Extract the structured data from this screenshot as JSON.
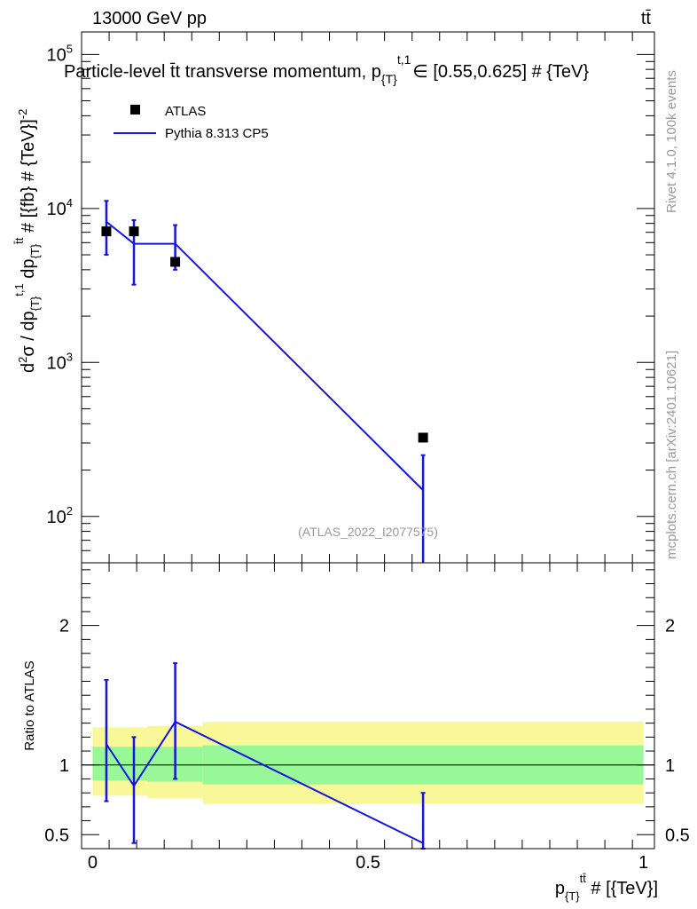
{
  "header": {
    "left": "13000 GeV pp",
    "right": "tt̄"
  },
  "chart_data": {
    "type": "line",
    "title": "Particle-level t̄t transverse momentum, p",
    "title_sub": "{T}",
    "title_sup": "t,1",
    "title_rest": "∈ [0.55,0.625] # {TeV}",
    "analysis_label": "(ATLAS_2022_I2077575)",
    "side_text_top": "Rivet 4.1.0,  100k events",
    "side_text_bottom": "mcplots.cern.ch [arXiv:2401.10621]",
    "legend": {
      "data_label": "ATLAS",
      "mc_label": "Pythia 8.313 CP5"
    },
    "main": {
      "ylabel": "d²σ / dp{T}t,1 dp{T}tt̄ # [{fb} # {TeV}⁻²]",
      "ylabel_parts": {
        "a": "d",
        "a_sup": "2",
        "b": "σ / dp",
        "b_sub": "{T}",
        "b_sup": "t,1",
        "c": " dp",
        "c_sub": "{T}",
        "c_sup": "t̄t",
        "d": " # [{fb} # {TeV}]",
        "d_sup": "-2"
      },
      "yscale": "log",
      "ylim": [
        50,
        140000
      ],
      "yticks": [
        {
          "value": 100,
          "base": "10",
          "exp": "2"
        },
        {
          "value": 1000,
          "base": "10",
          "exp": "3"
        },
        {
          "value": 10000,
          "base": "10",
          "exp": "4"
        },
        {
          "value": 100000,
          "base": "10",
          "exp": "5"
        }
      ],
      "data": {
        "name": "ATLAS",
        "x": [
          0.025,
          0.075,
          0.15,
          0.6
        ],
        "y": [
          7100,
          7100,
          4500,
          325
        ]
      },
      "mc": {
        "name": "Pythia 8.313 CP5",
        "bin_edges": [
          0,
          0.05,
          0.1,
          0.2,
          1.0
        ],
        "x": [
          0.025,
          0.075,
          0.15,
          0.6
        ],
        "y": [
          8200,
          5900,
          5900,
          148
        ],
        "err_low": [
          5000,
          3200,
          4000,
          50
        ],
        "err_high": [
          11200,
          8400,
          7800,
          250
        ]
      }
    },
    "ratio": {
      "ylabel": "Ratio to ATLAS",
      "ylim": [
        0.4,
        2.45
      ],
      "yticks": [
        {
          "value": 0.5,
          "label": "0.5"
        },
        {
          "value": 1,
          "label": "1"
        },
        {
          "value": 2,
          "label": "2"
        }
      ],
      "band_edges": [
        0,
        0.1,
        0.2,
        1.0
      ],
      "band_inner": [
        [
          0.89,
          1.13
        ],
        [
          0.88,
          1.13
        ],
        [
          0.86,
          1.14
        ]
      ],
      "band_outer": [
        [
          0.78,
          1.27
        ],
        [
          0.76,
          1.28
        ],
        [
          0.72,
          1.31
        ]
      ],
      "mc": {
        "x": [
          0.025,
          0.075,
          0.15,
          0.6
        ],
        "y": [
          1.15,
          0.85,
          1.31,
          0.44
        ],
        "err_low": [
          0.74,
          0.44,
          0.9,
          0.4
        ],
        "err_high": [
          1.61,
          1.2,
          1.73,
          0.8
        ]
      }
    },
    "x": {
      "label": "p",
      "label_sub": "{T}",
      "label_sup": "tt̄",
      "label_rest": " # [{TeV}]",
      "xlim": [
        -0.02,
        1.02
      ],
      "ticks": [
        {
          "value": 0,
          "label": "0"
        },
        {
          "value": 0.5,
          "label": "0.5"
        },
        {
          "value": 1,
          "label": "1"
        }
      ]
    },
    "colors": {
      "mc": "#1515e0",
      "data": "#000000",
      "band_inner": "#98f898",
      "band_outer": "#f8f898",
      "watermark": "#999999"
    }
  }
}
